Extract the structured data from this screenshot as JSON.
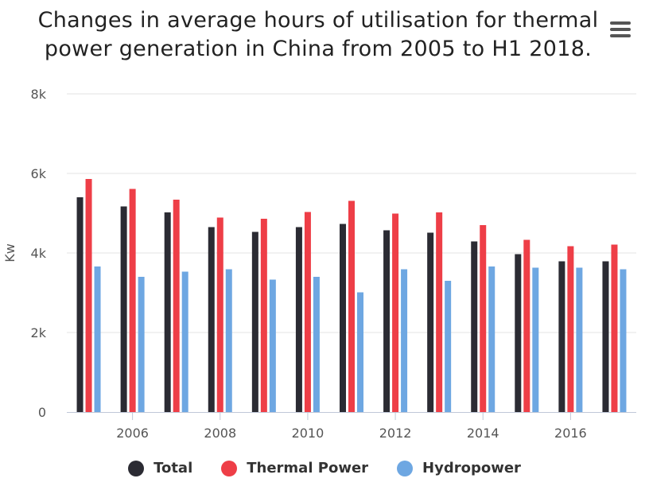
{
  "title_lines": [
    "Changes in average hours of utilisation for thermal",
    "power generation in China from 2005 to H1 2018."
  ],
  "menu_icon": "hamburger-menu-icon",
  "colors": {
    "total": "#2b2b33",
    "thermal": "#ee3e47",
    "hydro": "#6ea7e2",
    "grid": "#e3e3e3",
    "axis": "#c0c8d8",
    "label": "#555555"
  },
  "chart_data": {
    "type": "bar",
    "title": "Changes in average hours of utilisation for thermal power generation in China from 2005 to H1 2018.",
    "xlabel": "",
    "ylabel": "Kw",
    "ylim": [
      0,
      8000
    ],
    "yticks": [
      0,
      2000,
      4000,
      6000,
      8000
    ],
    "ytick_labels": [
      "0",
      "2k",
      "4k",
      "6k",
      "8k"
    ],
    "categories": [
      2005,
      2006,
      2007,
      2008,
      2009,
      2010,
      2011,
      2012,
      2013,
      2014,
      2015,
      2016,
      2017
    ],
    "xtick_labels": [
      "",
      "2006",
      "",
      "2008",
      "",
      "2010",
      "",
      "2012",
      "",
      "2014",
      "",
      "2016",
      ""
    ],
    "grid": true,
    "legend": "bottom",
    "series": [
      {
        "name": "Total",
        "color": "#2b2b33",
        "values": [
          5400,
          5170,
          5020,
          4650,
          4530,
          4650,
          4730,
          4570,
          4510,
          4290,
          3970,
          3790,
          3790
        ]
      },
      {
        "name": "Thermal Power",
        "color": "#ee3e47",
        "values": [
          5860,
          5610,
          5340,
          4890,
          4860,
          5030,
          5310,
          4990,
          5020,
          4700,
          4330,
          4170,
          4210
        ]
      },
      {
        "name": "Hydropower",
        "color": "#6ea7e2",
        "values": [
          3660,
          3400,
          3530,
          3590,
          3330,
          3400,
          3010,
          3590,
          3300,
          3660,
          3630,
          3630,
          3590
        ]
      }
    ]
  }
}
